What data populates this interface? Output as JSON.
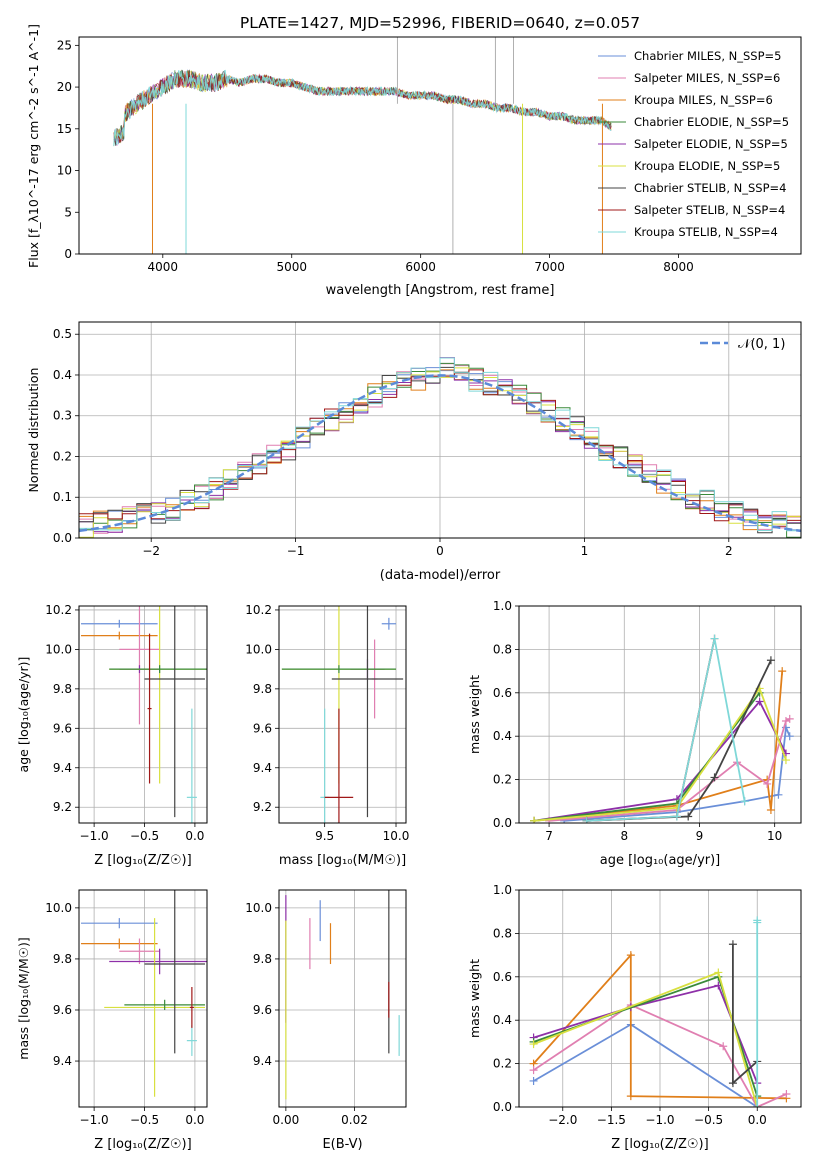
{
  "chart_data": [
    {
      "type": "line",
      "title": "PLATE=1427, MJD=52996, FIBERID=0640, z=0.057",
      "xlabel": "wavelength [Angstrom, rest frame]",
      "ylabel": "Flux [f_λ10^-17 erg cm^-2 s^-1 A^-1]",
      "xlim": [
        3350,
        8950
      ],
      "ylim": [
        0,
        26
      ],
      "xticks": [
        4000,
        5000,
        6000,
        7000,
        8000
      ],
      "yticks": [
        0,
        5,
        10,
        15,
        20,
        25
      ],
      "legend_position": "top-right",
      "series": [
        {
          "name": "Chabrier MILES, N_SSP=5",
          "color": "#6a8fd8"
        },
        {
          "name": "Salpeter MILES, N_SSP=6",
          "color": "#e07fb1"
        },
        {
          "name": "Kroupa MILES, N_SSP=6",
          "color": "#e07f1a"
        },
        {
          "name": "Chabrier ELODIE, N_SSP=5",
          "color": "#3a8a3a"
        },
        {
          "name": "Salpeter ELODIE, N_SSP=5",
          "color": "#8e30a8"
        },
        {
          "name": "Kroupa ELODIE, N_SSP=5",
          "color": "#d8e040"
        },
        {
          "name": "Chabrier STELIB, N_SSP=4",
          "color": "#444444"
        },
        {
          "name": "Salpeter STELIB, N_SSP=4",
          "color": "#a01818"
        },
        {
          "name": "Kroupa STELIB, N_SSP=4",
          "color": "#7fd8d8"
        }
      ],
      "x": [
        3650,
        3800,
        3900,
        4000,
        4100,
        4200,
        4300,
        4400,
        4500,
        4600,
        4700,
        4800,
        4900,
        5000,
        5100,
        5200,
        5300,
        5400,
        5500,
        5600,
        5700,
        5800,
        5900,
        6000,
        6100,
        6200,
        6300,
        6400,
        6500,
        6600,
        6700,
        6800,
        6900,
        7000,
        7100,
        7200,
        7300,
        7400,
        7500
      ],
      "y": [
        16,
        18,
        19,
        20,
        21,
        21,
        20.5,
        20.5,
        21,
        20.5,
        21,
        21,
        20.5,
        20.5,
        20,
        19.5,
        19.5,
        19.5,
        19.5,
        19.5,
        19.5,
        19.5,
        19,
        19,
        19,
        18.5,
        18.5,
        18,
        18,
        17.5,
        17.5,
        17,
        17,
        16.5,
        16.5,
        16,
        16,
        16,
        15
      ]
    },
    {
      "type": "line",
      "xlabel": "(data-model)/error",
      "ylabel": "Normed distribution",
      "xlim": [
        -2.5,
        2.5
      ],
      "ylim": [
        0,
        0.53
      ],
      "xticks": [
        -2,
        -1,
        0,
        1,
        2
      ],
      "yticks": [
        0.0,
        0.1,
        0.2,
        0.3,
        0.4,
        0.5
      ],
      "legend": [
        "𝒩(0, 1)"
      ],
      "legend_position": "top-right",
      "histogram_x": [
        -2.5,
        -2.4,
        -2.3,
        -2.2,
        -2.1,
        -2.0,
        -1.9,
        -1.8,
        -1.7,
        -1.6,
        -1.5,
        -1.4,
        -1.3,
        -1.2,
        -1.1,
        -1.0,
        -0.9,
        -0.8,
        -0.7,
        -0.6,
        -0.5,
        -0.4,
        -0.3,
        -0.2,
        -0.1,
        0.0,
        0.1,
        0.2,
        0.3,
        0.4,
        0.5,
        0.6,
        0.7,
        0.8,
        0.9,
        1.0,
        1.1,
        1.2,
        1.3,
        1.4,
        1.5,
        1.6,
        1.7,
        1.8,
        1.9,
        2.0,
        2.1,
        2.2,
        2.3,
        2.4
      ],
      "histogram_y": [
        0.03,
        0.04,
        0.04,
        0.05,
        0.06,
        0.06,
        0.07,
        0.09,
        0.1,
        0.12,
        0.14,
        0.16,
        0.18,
        0.2,
        0.22,
        0.25,
        0.27,
        0.29,
        0.31,
        0.33,
        0.35,
        0.37,
        0.38,
        0.39,
        0.4,
        0.42,
        0.4,
        0.39,
        0.38,
        0.37,
        0.35,
        0.33,
        0.31,
        0.29,
        0.27,
        0.25,
        0.22,
        0.2,
        0.18,
        0.16,
        0.14,
        0.12,
        0.1,
        0.09,
        0.07,
        0.06,
        0.05,
        0.04,
        0.04,
        0.03
      ]
    },
    {
      "type": "scatter",
      "xlabel": "Z [log₁₀(Z/Z☉)]",
      "ylabel": "age  [log₁₀(age/yr)]",
      "xlim": [
        -1.15,
        0.12
      ],
      "ylim": [
        9.12,
        10.22
      ],
      "xticks": [
        -1.0,
        -0.5,
        0.0
      ],
      "yticks": [
        9.2,
        9.4,
        9.6,
        9.8,
        10.0,
        10.2
      ],
      "points": [
        {
          "x": -0.75,
          "y": 10.13,
          "xerr": 0.38,
          "yerr": 0.02,
          "color": "#6a8fd8"
        },
        {
          "x": -0.75,
          "y": 10.07,
          "xerr": 0.38,
          "yerr": 0.02,
          "color": "#e07f1a"
        },
        {
          "x": -0.55,
          "y": 10.0,
          "xerr": 0.2,
          "yerr": 0.38,
          "color": "#e07fb1"
        },
        {
          "x": -0.55,
          "y": 9.9,
          "xerr": 0.2,
          "yerr": 0.02,
          "color": "#8e30a8"
        },
        {
          "x": -0.35,
          "y": 9.9,
          "xerr": 0.5,
          "yerr": 0.58,
          "color": "#d8e040"
        },
        {
          "x": -0.35,
          "y": 9.9,
          "xerr": 0.5,
          "yerr": 0.02,
          "color": "#3a8a3a"
        },
        {
          "x": -0.2,
          "y": 9.85,
          "xerr": 0.3,
          "yerr": 0.7,
          "color": "#444444"
        },
        {
          "x": -0.03,
          "y": 9.25,
          "xerr": 0.05,
          "yerr": 0.45,
          "color": "#7fd8d8"
        },
        {
          "x": -0.45,
          "y": 9.7,
          "xerr": 0.02,
          "yerr": 0.38,
          "color": "#a01818"
        }
      ]
    },
    {
      "type": "scatter",
      "xlabel": "mass [log₁₀(M/M☉)]",
      "xlim": [
        9.18,
        10.07
      ],
      "ylim": [
        9.12,
        10.22
      ],
      "xticks": [
        9.5,
        10.0
      ],
      "yticks": [
        9.2,
        9.4,
        9.6,
        9.8,
        10.0,
        10.2
      ],
      "points": [
        {
          "x": 9.95,
          "y": 10.13,
          "xerr": 0.05,
          "yerr": 0.03,
          "color": "#6a8fd8"
        },
        {
          "x": 9.85,
          "y": 9.85,
          "xerr": 0.02,
          "yerr": 0.2,
          "color": "#e07fb1"
        },
        {
          "x": 9.8,
          "y": 9.9,
          "xerr": 0.12,
          "yerr": 0.05,
          "color": "#8e30a8"
        },
        {
          "x": 9.6,
          "y": 9.9,
          "xerr": 0.4,
          "yerr": 0.58,
          "color": "#d8e040"
        },
        {
          "x": 9.6,
          "y": 9.9,
          "xerr": 0.4,
          "yerr": 0.02,
          "color": "#3a8a3a"
        },
        {
          "x": 9.8,
          "y": 9.85,
          "xerr": 0.25,
          "yerr": 0.7,
          "color": "#444444"
        },
        {
          "x": 9.5,
          "y": 9.25,
          "xerr": 0.03,
          "yerr": 0.45,
          "color": "#7fd8d8"
        },
        {
          "x": 9.6,
          "y": 9.25,
          "xerr": 0.1,
          "yerr": 0.45,
          "color": "#a01818"
        }
      ]
    },
    {
      "type": "line",
      "xlabel": "age  [log₁₀(age/yr)]",
      "ylabel": "mass weight",
      "xlim": [
        6.6,
        10.35
      ],
      "ylim": [
        0,
        1.0
      ],
      "xticks": [
        7,
        8,
        9,
        10
      ],
      "yticks": [
        0.0,
        0.2,
        0.4,
        0.6,
        0.8,
        1.0
      ],
      "series": [
        {
          "name": "Chabrier MILES",
          "color": "#6a8fd8",
          "x": [
            7.2,
            8.7,
            9.6,
            10.05,
            10.15,
            10.2
          ],
          "y": [
            0.01,
            0.05,
            0.1,
            0.13,
            0.44,
            0.4
          ]
        },
        {
          "name": "Kroupa MILES",
          "color": "#e07f1a",
          "x": [
            6.8,
            8.7,
            9.9,
            9.95,
            10.1
          ],
          "y": [
            0.01,
            0.08,
            0.2,
            0.06,
            0.7
          ]
        },
        {
          "name": "Salpeter MILES",
          "color": "#e07fb1",
          "x": [
            7.0,
            8.7,
            9.5,
            9.9,
            10.15,
            10.2
          ],
          "y": [
            0.01,
            0.06,
            0.28,
            0.18,
            0.47,
            0.48
          ]
        },
        {
          "name": "Salpeter ELODIE",
          "color": "#8e30a8",
          "x": [
            6.8,
            8.7,
            9.8,
            10.15
          ],
          "y": [
            0.01,
            0.11,
            0.56,
            0.32
          ]
        },
        {
          "name": "Chabrier ELODIE",
          "color": "#3a8a3a",
          "x": [
            6.8,
            8.7,
            9.8
          ],
          "y": [
            0.01,
            0.09,
            0.6
          ]
        },
        {
          "name": "Kroupa ELODIE",
          "color": "#d8e040",
          "x": [
            6.8,
            8.7,
            9.8,
            10.15
          ],
          "y": [
            0.01,
            0.07,
            0.62,
            0.29
          ]
        },
        {
          "name": "Chabrier STELIB",
          "color": "#444444",
          "x": [
            7.5,
            8.85,
            9.2,
            9.95
          ],
          "y": [
            0.01,
            0.03,
            0.21,
            0.75
          ]
        },
        {
          "name": "Salpeter STELIB",
          "color": "#a01818",
          "x": [
            7.5,
            8.7,
            9.2
          ],
          "y": [
            0.01,
            0.03,
            0.85
          ]
        },
        {
          "name": "Kroupa STELIB",
          "color": "#7fd8d8",
          "x": [
            7.5,
            8.7,
            9.2,
            9.6
          ],
          "y": [
            0.01,
            0.03,
            0.85,
            0.1
          ]
        }
      ]
    },
    {
      "type": "scatter",
      "xlabel": "Z [log₁₀(Z/Z☉)]",
      "ylabel": "mass [log₁₀(M/M☉)]",
      "xlim": [
        -1.15,
        0.12
      ],
      "ylim": [
        9.22,
        10.07
      ],
      "xticks": [
        -1.0,
        -0.5,
        0.0
      ],
      "yticks": [
        9.4,
        9.6,
        9.8,
        10.0
      ],
      "points": [
        {
          "x": -0.75,
          "y": 9.94,
          "xerr": 0.38,
          "yerr": 0.02,
          "color": "#6a8fd8"
        },
        {
          "x": -0.75,
          "y": 9.86,
          "xerr": 0.38,
          "yerr": 0.02,
          "color": "#e07f1a"
        },
        {
          "x": -0.55,
          "y": 9.83,
          "xerr": 0.2,
          "yerr": 0.05,
          "color": "#e07fb1"
        },
        {
          "x": -0.35,
          "y": 9.79,
          "xerr": 0.5,
          "yerr": 0.05,
          "color": "#8e30a8"
        },
        {
          "x": -0.4,
          "y": 9.61,
          "xerr": 0.5,
          "yerr": 0.35,
          "color": "#d8e040"
        },
        {
          "x": -0.3,
          "y": 9.62,
          "xerr": 0.4,
          "yerr": 0.02,
          "color": "#3a8a3a"
        },
        {
          "x": -0.2,
          "y": 9.78,
          "xerr": 0.3,
          "yerr": 0.35,
          "color": "#444444"
        },
        {
          "x": -0.03,
          "y": 9.48,
          "xerr": 0.05,
          "yerr": 0.06,
          "color": "#7fd8d8"
        },
        {
          "x": -0.03,
          "y": 9.61,
          "xerr": 0.02,
          "yerr": 0.08,
          "color": "#a01818"
        }
      ]
    },
    {
      "type": "scatter",
      "xlabel": "E(B-V)",
      "xlim": [
        -0.002,
        0.035
      ],
      "ylim": [
        9.22,
        10.07
      ],
      "xticks": [
        0.0,
        0.02
      ],
      "yticks": [
        9.4,
        9.6,
        9.8,
        10.0
      ],
      "points": [
        {
          "x": 0.0,
          "y": 9.8,
          "xerr": 0,
          "yerr": 0.25,
          "color": "#8e30a8"
        },
        {
          "x": 0.0,
          "y": 9.6,
          "xerr": 0,
          "yerr": 0.35,
          "color": "#d8e040"
        },
        {
          "x": 0.007,
          "y": 9.86,
          "xerr": 0,
          "yerr": 0.1,
          "color": "#e07fb1"
        },
        {
          "x": 0.01,
          "y": 9.95,
          "xerr": 0,
          "yerr": 0.08,
          "color": "#6a8fd8"
        },
        {
          "x": 0.013,
          "y": 9.86,
          "xerr": 0,
          "yerr": 0.08,
          "color": "#e07f1a"
        },
        {
          "x": 0.03,
          "y": 9.78,
          "xerr": 0,
          "yerr": 0.35,
          "color": "#444444"
        },
        {
          "x": 0.03,
          "y": 9.64,
          "xerr": 0,
          "yerr": 0.07,
          "color": "#a01818"
        },
        {
          "x": 0.033,
          "y": 9.5,
          "xerr": 0,
          "yerr": 0.08,
          "color": "#7fd8d8"
        }
      ]
    },
    {
      "type": "line",
      "xlabel": "Z [log₁₀(Z/Z☉)]",
      "ylabel": "mass weight",
      "xlim": [
        -2.45,
        0.45
      ],
      "ylim": [
        0,
        1.0
      ],
      "xticks": [
        -2.0,
        -1.5,
        -1.0,
        -0.5,
        0.0
      ],
      "yticks": [
        0.0,
        0.2,
        0.4,
        0.6,
        0.8,
        1.0
      ],
      "series": [
        {
          "name": "Chabrier MILES",
          "color": "#6a8fd8",
          "x": [
            -2.3,
            -1.3,
            0.0
          ],
          "y": [
            0.12,
            0.38,
            0.0
          ]
        },
        {
          "name": "Kroupa MILES",
          "color": "#e07f1a",
          "x": [
            -2.3,
            -1.3,
            -1.3,
            0.3
          ],
          "y": [
            0.2,
            0.7,
            0.05,
            0.04
          ]
        },
        {
          "name": "Salpeter MILES",
          "color": "#e07fb1",
          "x": [
            -2.3,
            -1.3,
            -0.35,
            0.0,
            0.3
          ],
          "y": [
            0.17,
            0.47,
            0.28,
            0.0,
            0.06
          ]
        },
        {
          "name": "Salpeter ELODIE",
          "color": "#8e30a8",
          "x": [
            -2.3,
            -1.3,
            -0.4,
            0.0
          ],
          "y": [
            0.32,
            0.46,
            0.56,
            0.11
          ]
        },
        {
          "name": "Chabrier ELODIE",
          "color": "#3a8a3a",
          "x": [
            -2.3,
            -0.4,
            0.0
          ],
          "y": [
            0.3,
            0.6,
            0.05
          ]
        },
        {
          "name": "Kroupa ELODIE",
          "color": "#d8e040",
          "x": [
            -2.3,
            -0.4,
            0.0
          ],
          "y": [
            0.29,
            0.62,
            0.0
          ]
        },
        {
          "name": "Chabrier STELIB",
          "color": "#444444",
          "x": [
            -0.25,
            -0.25,
            0.0
          ],
          "y": [
            0.75,
            0.11,
            0.21
          ]
        },
        {
          "name": "Kroupa STELIB",
          "color": "#7fd8d8",
          "x": [
            0.0,
            0.0,
            0.0
          ],
          "y": [
            0.0,
            0.85,
            0.86
          ]
        }
      ]
    }
  ]
}
